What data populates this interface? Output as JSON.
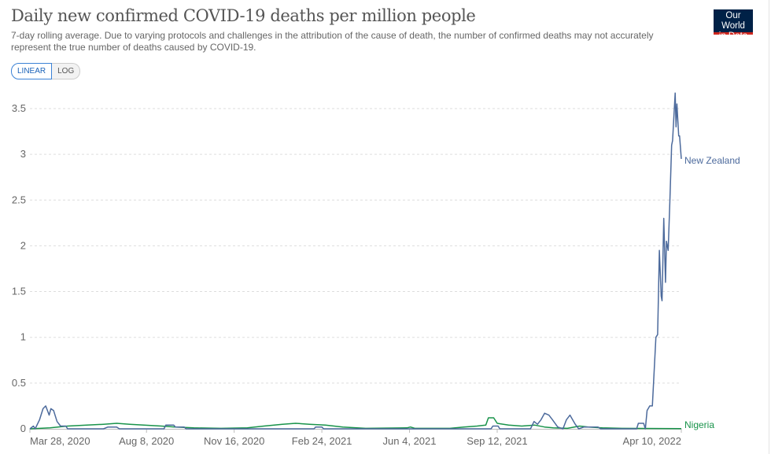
{
  "header": {
    "title": "Daily new confirmed COVID-19 deaths per million people",
    "subtitle": "7-day rolling average. Due to varying protocols and challenges in the attribution of the cause of death, the number of confirmed deaths may not accurately represent the true number of deaths caused by COVID-19.",
    "logo_text": "Our World in Data",
    "logo_line1": "Our World",
    "logo_line2": "in Data"
  },
  "controls": {
    "linear_label": "LINEAR",
    "log_label": "LOG",
    "selected": "LINEAR"
  },
  "chart_data": {
    "type": "line",
    "title": "Daily new confirmed COVID-19 deaths per million people",
    "xlim": [
      "2020-03-28",
      "2022-04-10"
    ],
    "ylim": [
      0,
      3.75
    ],
    "y_scale": "linear",
    "grid": "horizontal dashed",
    "legend": "inline labels at line ends (right)",
    "x_ticks": [
      {
        "date": "2020-03-28",
        "label": "Mar 28, 2020"
      },
      {
        "date": "2020-08-08",
        "label": "Aug 8, 2020"
      },
      {
        "date": "2020-11-16",
        "label": "Nov 16, 2020"
      },
      {
        "date": "2021-02-24",
        "label": "Feb 24, 2021"
      },
      {
        "date": "2021-06-04",
        "label": "Jun 4, 2021"
      },
      {
        "date": "2021-09-12",
        "label": "Sep 12, 2021"
      },
      {
        "date": "2022-04-10",
        "label": "Apr 10, 2022"
      }
    ],
    "y_ticks": [
      {
        "value": 0,
        "label": "0"
      },
      {
        "value": 0.5,
        "label": "0.5"
      },
      {
        "value": 1,
        "label": "1"
      },
      {
        "value": 1.5,
        "label": "1.5"
      },
      {
        "value": 2,
        "label": "2"
      },
      {
        "value": 2.5,
        "label": "2.5"
      },
      {
        "value": 3,
        "label": "3"
      },
      {
        "value": 3.5,
        "label": "3.5"
      }
    ],
    "series": [
      {
        "name": "New Zealand",
        "color": "#4c6a9c",
        "points": [
          [
            "2020-03-28",
            0
          ],
          [
            "2020-04-01",
            0.03
          ],
          [
            "2020-04-03",
            0
          ],
          [
            "2020-04-08",
            0.1
          ],
          [
            "2020-04-12",
            0.22
          ],
          [
            "2020-04-15",
            0.25
          ],
          [
            "2020-04-19",
            0.15
          ],
          [
            "2020-04-21",
            0.22
          ],
          [
            "2020-04-24",
            0.2
          ],
          [
            "2020-04-28",
            0.08
          ],
          [
            "2020-05-02",
            0.03
          ],
          [
            "2020-05-08",
            0.03
          ],
          [
            "2020-05-10",
            0
          ],
          [
            "2020-06-20",
            0
          ],
          [
            "2020-06-25",
            0.02
          ],
          [
            "2020-07-05",
            0.02
          ],
          [
            "2020-07-08",
            0
          ],
          [
            "2020-08-28",
            0
          ],
          [
            "2020-08-30",
            0.04
          ],
          [
            "2020-09-08",
            0.04
          ],
          [
            "2020-09-10",
            0.02
          ],
          [
            "2020-09-20",
            0.02
          ],
          [
            "2020-09-22",
            0
          ],
          [
            "2021-02-15",
            0
          ],
          [
            "2021-02-17",
            0.02
          ],
          [
            "2021-02-24",
            0.02
          ],
          [
            "2021-02-26",
            0
          ],
          [
            "2021-09-05",
            0
          ],
          [
            "2021-09-07",
            0.03
          ],
          [
            "2021-09-13",
            0.03
          ],
          [
            "2021-09-15",
            0
          ],
          [
            "2021-10-20",
            0
          ],
          [
            "2021-10-24",
            0.08
          ],
          [
            "2021-10-28",
            0.05
          ],
          [
            "2021-11-01",
            0.1
          ],
          [
            "2021-11-05",
            0.17
          ],
          [
            "2021-11-10",
            0.15
          ],
          [
            "2021-11-14",
            0.1
          ],
          [
            "2021-11-20",
            0.02
          ],
          [
            "2021-11-26",
            0
          ],
          [
            "2021-11-30",
            0.1
          ],
          [
            "2021-12-04",
            0.15
          ],
          [
            "2021-12-10",
            0.05
          ],
          [
            "2021-12-14",
            0
          ],
          [
            "2021-12-20",
            0.02
          ],
          [
            "2022-01-05",
            0.02
          ],
          [
            "2022-01-08",
            0
          ],
          [
            "2022-02-18",
            0
          ],
          [
            "2022-02-20",
            0.06
          ],
          [
            "2022-02-26",
            0.06
          ],
          [
            "2022-02-28",
            0
          ],
          [
            "2022-03-02",
            0.2
          ],
          [
            "2022-03-05",
            0.25
          ],
          [
            "2022-03-08",
            0.25
          ],
          [
            "2022-03-12",
            1.0
          ],
          [
            "2022-03-14",
            1.03
          ],
          [
            "2022-03-16",
            1.95
          ],
          [
            "2022-03-18",
            1.45
          ],
          [
            "2022-03-19",
            1.4
          ],
          [
            "2022-03-21",
            2.3
          ],
          [
            "2022-03-23",
            1.6
          ],
          [
            "2022-03-24",
            2.05
          ],
          [
            "2022-03-26",
            1.95
          ],
          [
            "2022-03-28",
            2.5
          ],
          [
            "2022-03-30",
            3.1
          ],
          [
            "2022-03-31",
            3.15
          ],
          [
            "2022-04-03",
            3.67
          ],
          [
            "2022-04-04",
            3.3
          ],
          [
            "2022-04-05",
            3.55
          ],
          [
            "2022-04-07",
            3.2
          ],
          [
            "2022-04-08",
            3.2
          ],
          [
            "2022-04-10",
            2.95
          ]
        ]
      },
      {
        "name": "Nigeria",
        "color": "#18934a",
        "points": [
          [
            "2020-03-28",
            0
          ],
          [
            "2020-04-20",
            0.01
          ],
          [
            "2020-05-10",
            0.03
          ],
          [
            "2020-06-01",
            0.04
          ],
          [
            "2020-06-20",
            0.05
          ],
          [
            "2020-07-05",
            0.06
          ],
          [
            "2020-07-20",
            0.05
          ],
          [
            "2020-08-05",
            0.04
          ],
          [
            "2020-08-25",
            0.03
          ],
          [
            "2020-09-10",
            0.02
          ],
          [
            "2020-10-01",
            0.01
          ],
          [
            "2020-11-01",
            0.005
          ],
          [
            "2020-12-01",
            0.01
          ],
          [
            "2020-12-20",
            0.03
          ],
          [
            "2021-01-10",
            0.05
          ],
          [
            "2021-01-25",
            0.06
          ],
          [
            "2021-02-10",
            0.05
          ],
          [
            "2021-02-28",
            0.04
          ],
          [
            "2021-03-20",
            0.02
          ],
          [
            "2021-04-15",
            0.005
          ],
          [
            "2021-06-01",
            0.01
          ],
          [
            "2021-06-05",
            0.02
          ],
          [
            "2021-06-10",
            0.005
          ],
          [
            "2021-07-20",
            0.005
          ],
          [
            "2021-08-05",
            0.02
          ],
          [
            "2021-08-20",
            0.03
          ],
          [
            "2021-08-30",
            0.04
          ],
          [
            "2021-09-02",
            0.12
          ],
          [
            "2021-09-08",
            0.12
          ],
          [
            "2021-09-12",
            0.06
          ],
          [
            "2021-09-25",
            0.04
          ],
          [
            "2021-10-10",
            0.03
          ],
          [
            "2021-10-25",
            0.04
          ],
          [
            "2021-11-05",
            0.02
          ],
          [
            "2021-11-15",
            0.01
          ],
          [
            "2021-12-01",
            0.005
          ],
          [
            "2021-12-15",
            0.03
          ],
          [
            "2021-12-25",
            0.02
          ],
          [
            "2022-01-10",
            0.01
          ],
          [
            "2022-02-01",
            0.005
          ],
          [
            "2022-04-10",
            0.002
          ]
        ]
      }
    ]
  }
}
